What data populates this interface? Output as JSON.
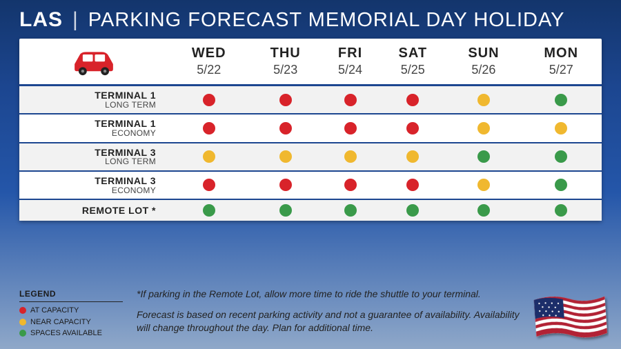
{
  "title": {
    "code": "LAS",
    "separator": "|",
    "main": "PARKING FORECAST MEMORIAL DAY HOLIDAY"
  },
  "colors": {
    "at_capacity": "#d8232a",
    "near_capacity": "#f0b82f",
    "spaces_available": "#3a9a4a",
    "header_blue": "#1c4690",
    "car_red": "#d8232a"
  },
  "days": [
    {
      "abbr": "WED",
      "date": "5/22"
    },
    {
      "abbr": "THU",
      "date": "5/23"
    },
    {
      "abbr": "FRI",
      "date": "5/24"
    },
    {
      "abbr": "SAT",
      "date": "5/25"
    },
    {
      "abbr": "SUN",
      "date": "5/26"
    },
    {
      "abbr": "MON",
      "date": "5/27"
    }
  ],
  "rows": [
    {
      "terminal": "TERMINAL 1",
      "type": "LONG TERM",
      "status": [
        "at_capacity",
        "at_capacity",
        "at_capacity",
        "at_capacity",
        "near_capacity",
        "spaces_available"
      ]
    },
    {
      "terminal": "TERMINAL 1",
      "type": "ECONOMY",
      "status": [
        "at_capacity",
        "at_capacity",
        "at_capacity",
        "at_capacity",
        "near_capacity",
        "near_capacity"
      ]
    },
    {
      "terminal": "TERMINAL 3",
      "type": "LONG TERM",
      "status": [
        "near_capacity",
        "near_capacity",
        "near_capacity",
        "near_capacity",
        "spaces_available",
        "spaces_available"
      ]
    },
    {
      "terminal": "TERMINAL 3",
      "type": "ECONOMY",
      "status": [
        "at_capacity",
        "at_capacity",
        "at_capacity",
        "at_capacity",
        "near_capacity",
        "spaces_available"
      ]
    },
    {
      "terminal": "REMOTE LOT *",
      "type": "",
      "status": [
        "spaces_available",
        "spaces_available",
        "spaces_available",
        "spaces_available",
        "spaces_available",
        "spaces_available"
      ]
    }
  ],
  "legend": {
    "title": "LEGEND",
    "items": [
      {
        "key": "at_capacity",
        "label": "AT CAPACITY"
      },
      {
        "key": "near_capacity",
        "label": "NEAR CAPACITY"
      },
      {
        "key": "spaces_available",
        "label": "SPACES AVAILABLE"
      }
    ]
  },
  "notes": {
    "line1": "*If parking in the Remote Lot, allow more time to ride the shuttle to your terminal.",
    "line2": "Forecast is based on recent parking activity and not a guarantee of availability. Availability will change throughout the day. Plan for additional time."
  }
}
